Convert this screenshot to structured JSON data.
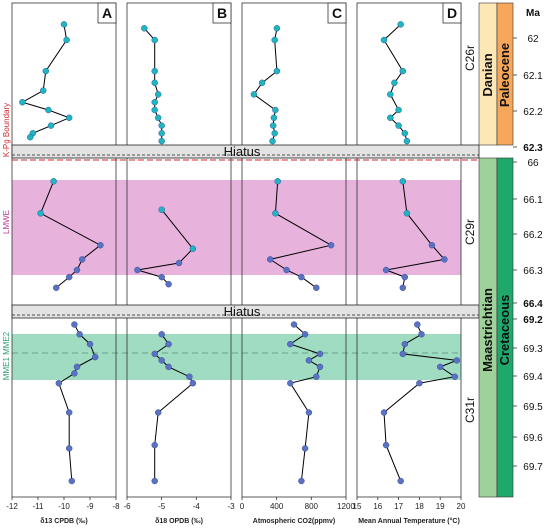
{
  "figure": {
    "panel_labels": [
      "A",
      "B",
      "C",
      "D"
    ],
    "age_header": "Ma",
    "hiatus_label": "Hiatus",
    "side_labels": {
      "kpg": "K-Pg Boundary",
      "lmwe": "LMWE",
      "mmes": "MME1 MME2"
    },
    "magnetochrons": [
      "C26r",
      "C29r",
      "C31r"
    ],
    "stages": [
      "Danian",
      "Maastrichtian"
    ],
    "epochs": [
      "Paleocene",
      "Cretaceous"
    ],
    "age_ticks": [
      {
        "label": "62",
        "bold": false
      },
      {
        "label": "62.1",
        "bold": false
      },
      {
        "label": "62.2",
        "bold": false
      },
      {
        "label": "62.3",
        "bold": true
      },
      {
        "label": "66",
        "bold": false
      },
      {
        "label": "66.1",
        "bold": false
      },
      {
        "label": "66.2",
        "bold": false
      },
      {
        "label": "66.3",
        "bold": false
      },
      {
        "label": "66.4",
        "bold": true
      },
      {
        "label": "69.2",
        "bold": true
      },
      {
        "label": "69.3",
        "bold": false
      },
      {
        "label": "69.4",
        "bold": false
      },
      {
        "label": "69.5",
        "bold": false
      },
      {
        "label": "69.6",
        "bold": false
      },
      {
        "label": "69.7",
        "bold": false
      }
    ],
    "colors": {
      "point_dark": "#5b72c2",
      "point_cyan": "#1fb5c1",
      "line": "#000000",
      "lmwe_band": "#e7b2dc",
      "mme_band": "#9fdcc2",
      "hiatus_band": "#e3e3e3",
      "kpg_red": "#d62728",
      "danian": "#fde7b5",
      "paleocene": "#f7a75a",
      "maastrichtian": "#9fd19a",
      "cretaceous": "#1fa86c",
      "lmwe_text": "#c2399a",
      "mme_text": "#2f9e6f"
    }
  },
  "chart_data": {
    "type": "line",
    "y_axis": "Age (Ma)",
    "panels": [
      {
        "id": "A",
        "xlabel": "δ13 CPDB (‰)",
        "xlim": [
          -12,
          -8
        ],
        "xticks": [
          "-12",
          "-11",
          "-10",
          "-9",
          "-8"
        ],
        "series": [
          {
            "age": [
              61.99,
              62.03,
              62.11,
              62.16,
              62.19,
              62.21,
              62.23,
              62.25,
              62.27,
              62.28
            ],
            "values": [
              -10.0,
              -9.9,
              -10.7,
              -10.8,
              -11.6,
              -10.6,
              -9.8,
              -10.5,
              -11.2,
              -11.3
            ]
          },
          {
            "age": [
              66.06,
              66.15,
              66.24,
              66.28,
              66.31,
              66.33,
              66.36
            ],
            "values": [
              -10.4,
              -10.9,
              -8.6,
              -9.3,
              -9.5,
              -9.8,
              -10.3
            ]
          },
          {
            "age": [
              69.22,
              69.25,
              69.28,
              69.32,
              69.35,
              69.37,
              69.4,
              69.49,
              69.6,
              69.7
            ],
            "values": [
              -9.6,
              -9.4,
              -9.0,
              -8.8,
              -9.5,
              -9.6,
              -10.2,
              -9.8,
              -9.8,
              -9.7
            ]
          }
        ]
      },
      {
        "id": "B",
        "xlabel": "δ18 OPDB (‰)",
        "xlim": [
          -6,
          -3
        ],
        "xticks": [
          "-6",
          "-5",
          "-4",
          "-3"
        ],
        "series": [
          {
            "age": [
              62.0,
              62.03,
              62.11,
              62.14,
              62.17,
              62.19,
              62.21,
              62.23,
              62.25,
              62.27,
              62.29
            ],
            "values": [
              -5.5,
              -5.2,
              -5.2,
              -5.2,
              -5.1,
              -5.2,
              -5.2,
              -5.1,
              -5.0,
              -5.0,
              -5.0
            ]
          },
          {
            "age": [
              66.14,
              66.25,
              66.29,
              66.31,
              66.33,
              66.35
            ],
            "values": [
              -5.0,
              -4.1,
              -4.5,
              -5.7,
              -5.0,
              -4.8
            ]
          },
          {
            "age": [
              69.25,
              69.28,
              69.31,
              69.33,
              69.35,
              69.38,
              69.4,
              69.49,
              69.59,
              69.7
            ],
            "values": [
              -5.0,
              -4.8,
              -5.2,
              -5.0,
              -4.8,
              -4.2,
              -4.1,
              -5.1,
              -5.2,
              -5.2
            ]
          }
        ]
      },
      {
        "id": "C",
        "xlabel": "Atmospheric CO2(ppmv)",
        "xlim": [
          0,
          1400
        ],
        "xticks": [
          "0",
          "400",
          "800",
          "1200"
        ],
        "series": [
          {
            "age": [
              62.0,
              62.03,
              62.11,
              62.14,
              62.17,
              62.21,
              62.23,
              62.25,
              62.27,
              62.29
            ],
            "values": [
              470,
              440,
              470,
              270,
              160,
              450,
              430,
              420,
              440,
              410
            ]
          },
          {
            "age": [
              66.06,
              66.15,
              66.24,
              66.28,
              66.31,
              66.33,
              66.36
            ],
            "values": [
              480,
              450,
              1200,
              380,
              600,
              800,
              1000
            ]
          },
          {
            "age": [
              69.22,
              69.25,
              69.28,
              69.31,
              69.33,
              69.35,
              69.38,
              69.4,
              69.49,
              69.6,
              69.7
            ],
            "values": [
              700,
              850,
              650,
              1050,
              900,
              1050,
              1000,
              650,
              900,
              850,
              800
            ]
          }
        ]
      },
      {
        "id": "D",
        "xlabel": "Mean Annual Temperature (°C)",
        "xlim": [
          15,
          20
        ],
        "xticks": [
          "15",
          "16",
          "17",
          "18",
          "19",
          "20"
        ],
        "series": [
          {
            "age": [
              61.99,
              62.03,
              62.11,
              62.14,
              62.17,
              62.21,
              62.23,
              62.25,
              62.27,
              62.29
            ],
            "values": [
              17.1,
              16.3,
              17.2,
              16.8,
              16.6,
              17.0,
              16.6,
              17.0,
              17.3,
              17.4
            ]
          },
          {
            "age": [
              66.06,
              66.15,
              66.24,
              66.28,
              66.31,
              66.33,
              66.36
            ],
            "values": [
              17.2,
              17.4,
              18.6,
              19.2,
              16.4,
              17.3,
              17.2
            ]
          },
          {
            "age": [
              69.22,
              69.25,
              69.28,
              69.31,
              69.33,
              69.35,
              69.38,
              69.4,
              69.49,
              69.59,
              69.7
            ],
            "values": [
              17.9,
              18.1,
              17.3,
              17.2,
              19.8,
              19.0,
              19.7,
              18.0,
              16.3,
              16.4,
              17.1
            ]
          }
        ]
      }
    ]
  }
}
